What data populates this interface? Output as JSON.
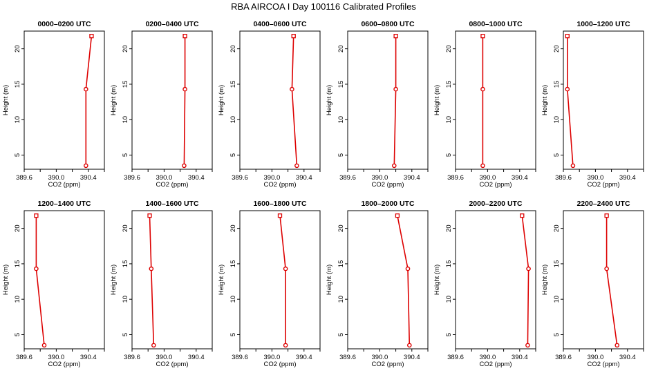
{
  "figure": {
    "title": "RBA AIRCOA I  Day 100116  Calibrated Profiles"
  },
  "chart_data": [
    {
      "type": "line",
      "title": "0000–0200 UTC",
      "xlabel": "CO2 (ppm)",
      "ylabel": "Height (m)",
      "xlim": [
        389.6,
        390.6
      ],
      "ylim": [
        3,
        22.5
      ],
      "xticks": [
        "389.6",
        "390.0",
        "390.4"
      ],
      "yticks": [
        "5",
        "10",
        "15",
        "20"
      ],
      "series": [
        {
          "color": "#dd0000",
          "x": [
            390.37,
            390.37,
            390.44
          ],
          "y": [
            3.5,
            14.3,
            21.8
          ]
        }
      ]
    },
    {
      "type": "line",
      "title": "0200–0400 UTC",
      "xlabel": "CO2 (ppm)",
      "ylabel": "Height (m)",
      "xlim": [
        389.6,
        390.6
      ],
      "ylim": [
        3,
        22.5
      ],
      "xticks": [
        "389.6",
        "390.0",
        "390.4"
      ],
      "yticks": [
        "5",
        "10",
        "15",
        "20"
      ],
      "series": [
        {
          "color": "#dd0000",
          "x": [
            390.25,
            390.26,
            390.26
          ],
          "y": [
            3.5,
            14.3,
            21.8
          ]
        }
      ]
    },
    {
      "type": "line",
      "title": "0400–0600 UTC",
      "xlabel": "CO2 (ppm)",
      "ylabel": "Height (m)",
      "xlim": [
        389.6,
        390.6
      ],
      "ylim": [
        3,
        22.5
      ],
      "xticks": [
        "389.6",
        "390.0",
        "390.4"
      ],
      "yticks": [
        "5",
        "10",
        "15",
        "20"
      ],
      "series": [
        {
          "color": "#dd0000",
          "x": [
            390.31,
            390.25,
            390.27
          ],
          "y": [
            3.5,
            14.3,
            21.8
          ]
        }
      ]
    },
    {
      "type": "line",
      "title": "0600–0800 UTC",
      "xlabel": "CO2 (ppm)",
      "ylabel": "Height (m)",
      "xlim": [
        389.6,
        390.6
      ],
      "ylim": [
        3,
        22.5
      ],
      "xticks": [
        "389.6",
        "390.0",
        "390.4"
      ],
      "yticks": [
        "5",
        "10",
        "15",
        "20"
      ],
      "series": [
        {
          "color": "#dd0000",
          "x": [
            390.18,
            390.2,
            390.2
          ],
          "y": [
            3.5,
            14.3,
            21.8
          ]
        }
      ]
    },
    {
      "type": "line",
      "title": "0800–1000 UTC",
      "xlabel": "CO2 (ppm)",
      "ylabel": "Height (m)",
      "xlim": [
        389.6,
        390.6
      ],
      "ylim": [
        3,
        22.5
      ],
      "xticks": [
        "389.6",
        "390.0",
        "390.4"
      ],
      "yticks": [
        "5",
        "10",
        "15",
        "20"
      ],
      "series": [
        {
          "color": "#dd0000",
          "x": [
            389.94,
            389.94,
            389.94
          ],
          "y": [
            3.5,
            14.3,
            21.8
          ]
        }
      ]
    },
    {
      "type": "line",
      "title": "1000–1200 UTC",
      "xlabel": "CO2 (ppm)",
      "ylabel": "Height (m)",
      "xlim": [
        389.6,
        390.6
      ],
      "ylim": [
        3,
        22.5
      ],
      "xticks": [
        "389.6",
        "390.0",
        "390.4"
      ],
      "yticks": [
        "5",
        "10",
        "15",
        "20"
      ],
      "series": [
        {
          "color": "#dd0000",
          "x": [
            389.72,
            389.65,
            389.65
          ],
          "y": [
            3.5,
            14.3,
            21.8
          ]
        }
      ]
    },
    {
      "type": "line",
      "title": "1200–1400 UTC",
      "xlabel": "CO2 (ppm)",
      "ylabel": "Height (m)",
      "xlim": [
        389.6,
        390.6
      ],
      "ylim": [
        3,
        22.5
      ],
      "xticks": [
        "389.6",
        "390.0",
        "390.4"
      ],
      "yticks": [
        "5",
        "10",
        "15",
        "20"
      ],
      "series": [
        {
          "color": "#dd0000",
          "x": [
            389.85,
            389.75,
            389.75
          ],
          "y": [
            3.5,
            14.3,
            21.8
          ]
        }
      ]
    },
    {
      "type": "line",
      "title": "1400–1600 UTC",
      "xlabel": "CO2 (ppm)",
      "ylabel": "Height (m)",
      "xlim": [
        389.6,
        390.6
      ],
      "ylim": [
        3,
        22.5
      ],
      "xticks": [
        "389.6",
        "390.0",
        "390.4"
      ],
      "yticks": [
        "5",
        "10",
        "15",
        "20"
      ],
      "series": [
        {
          "color": "#dd0000",
          "x": [
            389.87,
            389.84,
            389.82
          ],
          "y": [
            3.5,
            14.3,
            21.8
          ]
        }
      ]
    },
    {
      "type": "line",
      "title": "1600–1800 UTC",
      "xlabel": "CO2 (ppm)",
      "ylabel": "Height (m)",
      "xlim": [
        389.6,
        390.6
      ],
      "ylim": [
        3,
        22.5
      ],
      "xticks": [
        "389.6",
        "390.0",
        "390.4"
      ],
      "yticks": [
        "5",
        "10",
        "15",
        "20"
      ],
      "series": [
        {
          "color": "#dd0000",
          "x": [
            390.17,
            390.17,
            390.1
          ],
          "y": [
            3.5,
            14.3,
            21.8
          ]
        }
      ]
    },
    {
      "type": "line",
      "title": "1800–2000 UTC",
      "xlabel": "CO2 (ppm)",
      "ylabel": "Height (m)",
      "xlim": [
        389.6,
        390.6
      ],
      "ylim": [
        3,
        22.5
      ],
      "xticks": [
        "389.6",
        "390.0",
        "390.4"
      ],
      "yticks": [
        "5",
        "10",
        "15",
        "20"
      ],
      "series": [
        {
          "color": "#dd0000",
          "x": [
            390.37,
            390.35,
            390.22
          ],
          "y": [
            3.5,
            14.3,
            21.8
          ]
        }
      ]
    },
    {
      "type": "line",
      "title": "2000–2200 UTC",
      "xlabel": "CO2 (ppm)",
      "ylabel": "Height (m)",
      "xlim": [
        389.6,
        390.6
      ],
      "ylim": [
        3,
        22.5
      ],
      "xticks": [
        "389.6",
        "390.0",
        "390.4"
      ],
      "yticks": [
        "5",
        "10",
        "15",
        "20"
      ],
      "series": [
        {
          "color": "#dd0000",
          "x": [
            390.5,
            390.51,
            390.43
          ],
          "y": [
            3.5,
            14.3,
            21.8
          ]
        }
      ]
    },
    {
      "type": "line",
      "title": "2200–2400 UTC",
      "xlabel": "CO2 (ppm)",
      "ylabel": "Height (m)",
      "xlim": [
        389.6,
        390.6
      ],
      "ylim": [
        3,
        22.5
      ],
      "xticks": [
        "389.6",
        "390.0",
        "390.4"
      ],
      "yticks": [
        "5",
        "10",
        "15",
        "20"
      ],
      "series": [
        {
          "color": "#dd0000",
          "x": [
            390.27,
            390.14,
            390.14
          ],
          "y": [
            3.5,
            14.3,
            21.8
          ]
        }
      ]
    }
  ]
}
